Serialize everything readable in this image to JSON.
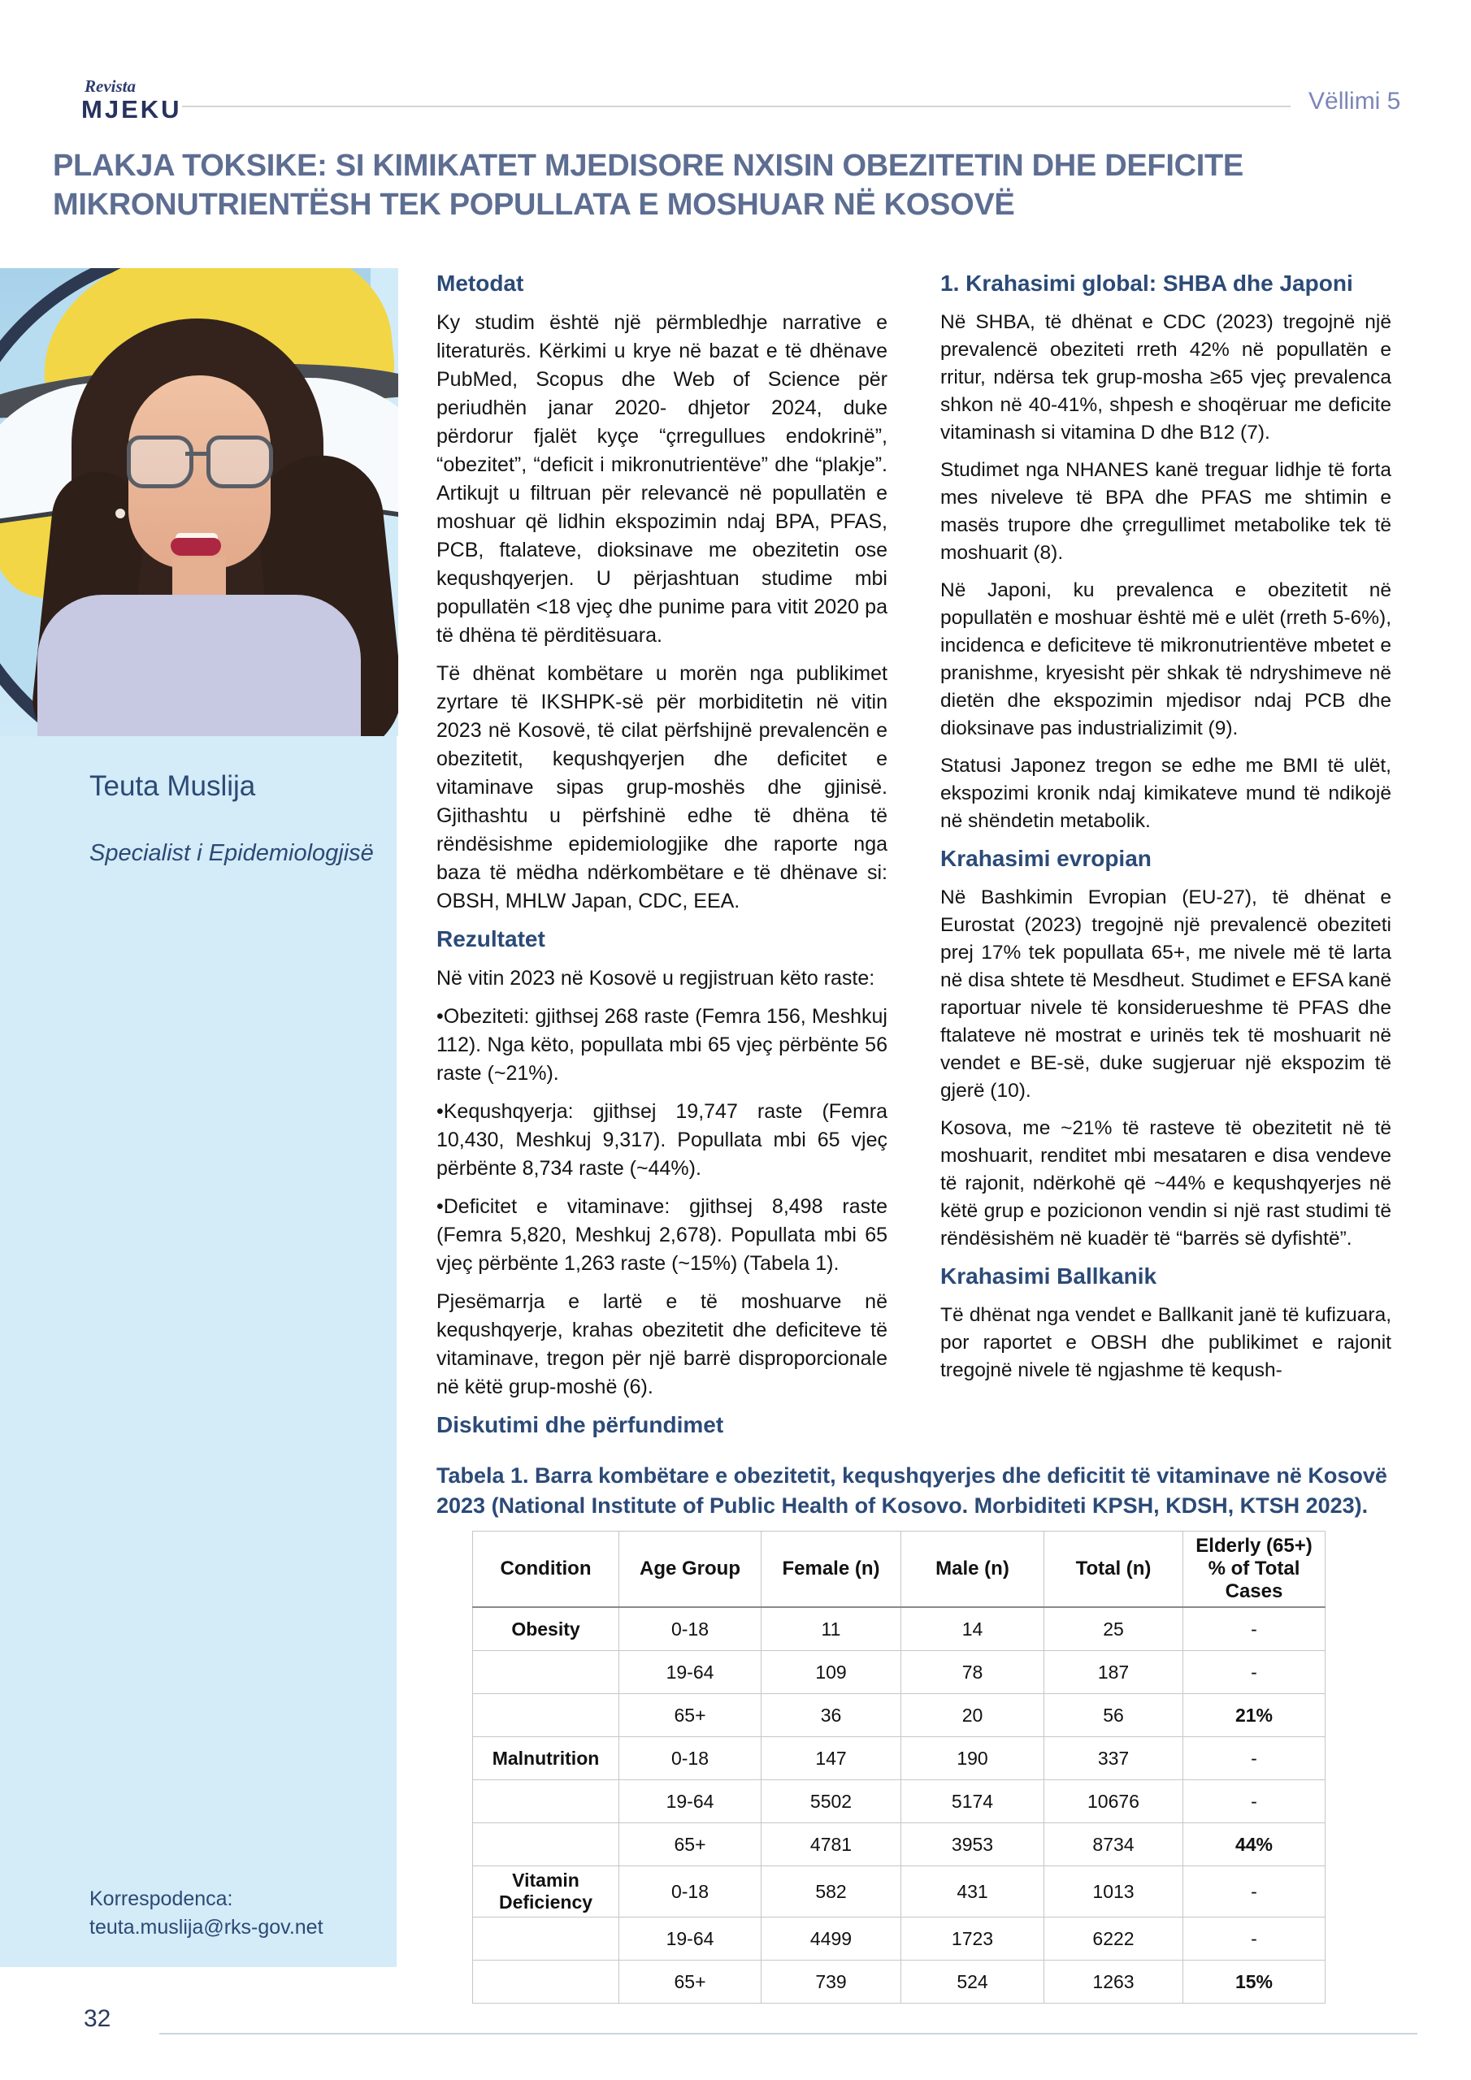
{
  "masthead": {
    "brand_small": "Revista",
    "brand": "MJEKU",
    "volume": "Vëllimi 5"
  },
  "article": {
    "title": "PLAKJA TOKSIKE: SI KIMIKATET MJEDISORE NXISIN OBEZITETIN DHE DEFICITE MIKRONUTRIENTËSH TEK POPULLATA E MOSHUAR NË KOSOVË"
  },
  "author": {
    "name": "Teuta Muslija",
    "role": "Specialist i Epidemiologjisë",
    "correspondence_label": "Korrespodenca:",
    "email": "teuta.muslija@rks-gov.net"
  },
  "col1": {
    "h1": "Metodat",
    "p1": "Ky studim është një përmbledhje narrative e literaturës. Kërkimi u krye në bazat e të dhënave PubMed, Scopus dhe Web of Science për periudhën janar 2020- dhjetor 2024, duke përdorur fjalët kyçe “çrregullues endokrinë”, “obezitet”, “deficit i mikronutrientëve” dhe “plakje”. Artikujt u filtruan për relevancë në popullatën e moshuar që lidhin ekspozimin ndaj BPA, PFAS, PCB, ftalateve, dioksinave me obezitetin ose kequshqyerjen. U përjashtuan studime mbi popullatën <18 vjeç dhe punime para vitit 2020 pa të dhëna të përditësuara.",
    "p2": "Të dhënat kombëtare u morën nga publikimet zyrtare të IKSHPK-së për morbiditetin në vitin 2023 në Kosovë, të cilat përfshijnë prevalencën e obezitetit, kequshqyerjen dhe deficitet e vitaminave sipas grup-moshës dhe gjinisë. Gjithashtu u përfshinë edhe të dhëna të rëndësishme epidemiologjike dhe raporte nga baza të mëdha ndërkombëtare e të dhënave si: OBSH, MHLW Japan, CDC, EEA.",
    "h2": "Rezultatet",
    "p3": "Në vitin 2023 në Kosovë u regjistruan këto raste:",
    "b1": "•Obeziteti: gjithsej 268 raste (Femra 156, Meshkuj 112). Nga këto, popullata mbi 65 vjeç përbënte 56 raste (~21%).",
    "b2": "•Kequshqyerja: gjithsej 19,747 raste (Femra 10,430, Meshkuj 9,317). Popullata mbi 65 vjeç përbënte 8,734 raste (~44%).",
    "b3": "•Deficitet e vitaminave: gjithsej 8,498 raste (Femra 5,820, Meshkuj 2,678). Popullata mbi 65 vjeç përbënte 1,263 raste (~15%) (Tabela 1).",
    "p4": "Pjesëmarrja e lartë e të moshuarve në kequshqyerje, krahas obezitetit dhe deficiteve të vitaminave, tregon për një barrë disproporcionale në këtë grup-moshë (6).",
    "h3": "Diskutimi dhe përfundimet"
  },
  "col2": {
    "h1": "1. Krahasimi global: SHBA dhe Japoni",
    "p1": "Në SHBA, të dhënat e CDC (2023) tregojnë një prevalencë obeziteti rreth 42% në popullatën e rritur, ndërsa tek grup-mosha ≥65 vjeç prevalenca shkon në 40-41%, shpesh e shoqëruar me deficite vitaminash si vitamina D dhe B12 (7).",
    "p2": "Studimet nga NHANES kanë treguar lidhje të forta mes niveleve të BPA dhe PFAS me shtimin e masës trupore dhe çrregullimet metabolike tek të moshuarit (8).",
    "p3": "Në Japoni, ku prevalenca e obezitetit në popullatën e moshuar është më e ulët (rreth 5-6%), incidenca e deficiteve të mikronutrientëve mbetet e pranishme, kryesisht për shkak të ndryshimeve në dietën dhe ekspozimin mjedisor ndaj PCB dhe dioksinave pas industrializimit (9).",
    "p4": "Statusi Japonez tregon se edhe me BMI të ulët, ekspozimi kronik ndaj kimikateve mund të ndikojë në shëndetin metabolik.",
    "h2": "Krahasimi evropian",
    "p5": "Në Bashkimin Evropian (EU-27), të dhënat e Eurostat (2023) tregojnë një prevalencë obeziteti prej 17% tek popullata 65+, me nivele më të larta në disa shtete të Mesdheut. Studimet e EFSA kanë raportuar nivele të konsiderueshme të PFAS dhe ftalateve në mostrat e urinës tek të moshuarit në vendet e BE-së, duke sugjeruar një ekspozim të gjerë (10).",
    "p6": "Kosova, me ~21% të rasteve të obezitetit në të moshuarit, renditet mbi mesataren e disa vendeve të rajonit, ndërkohë që ~44% e kequshqyerjes në këtë grup e pozicionon vendin si një rast studimi të rëndësishëm në kuadër të “barrës së dyfishtë”.",
    "h3": "Krahasimi Ballkanik",
    "p7": "Të dhënat nga vendet e Ballkanit janë të kufizuara, por raportet e OBSH dhe publikimet e rajonit tregojnë nivele të ngjashme të keqush-"
  },
  "table": {
    "caption": "Tabela 1. Barra kombëtare e obezitetit, kequshqyerjes dhe deficitit të vitaminave në Kosovë 2023 (National Institute of Public Health of Kosovo. Morbiditeti KPSH, KDSH, KTSH 2023).",
    "headers": [
      "Condition",
      "Age Group",
      "Female (n)",
      "Male (n)",
      "Total (n)",
      "Elderly (65+) % of Total Cases"
    ],
    "rows": [
      [
        "Obesity",
        "0-18",
        "11",
        "14",
        "25",
        "-"
      ],
      [
        "",
        "19-64",
        "109",
        "78",
        "187",
        "-"
      ],
      [
        "",
        "65+",
        "36",
        "20",
        "56",
        "21%"
      ],
      [
        "Malnutrition",
        "0-18",
        "147",
        "190",
        "337",
        "-"
      ],
      [
        "",
        "19-64",
        "5502",
        "5174",
        "10676",
        "-"
      ],
      [
        "",
        "65+",
        "4781",
        "3953",
        "8734",
        "44%"
      ],
      [
        "Vitamin Deficiency",
        "0-18",
        "582",
        "431",
        "1013",
        "-"
      ],
      [
        "",
        "19-64",
        "4499",
        "1723",
        "6222",
        "-"
      ],
      [
        "",
        "65+",
        "739",
        "524",
        "1263",
        "15%"
      ]
    ]
  },
  "footer": {
    "page_number": "32"
  },
  "colors": {
    "heading_navy": "#2b4a77",
    "title_blue_gray": "#5d6e92",
    "sidebar_blue": "#d4ebf8",
    "volume_periwinkle": "#7b86b7"
  }
}
